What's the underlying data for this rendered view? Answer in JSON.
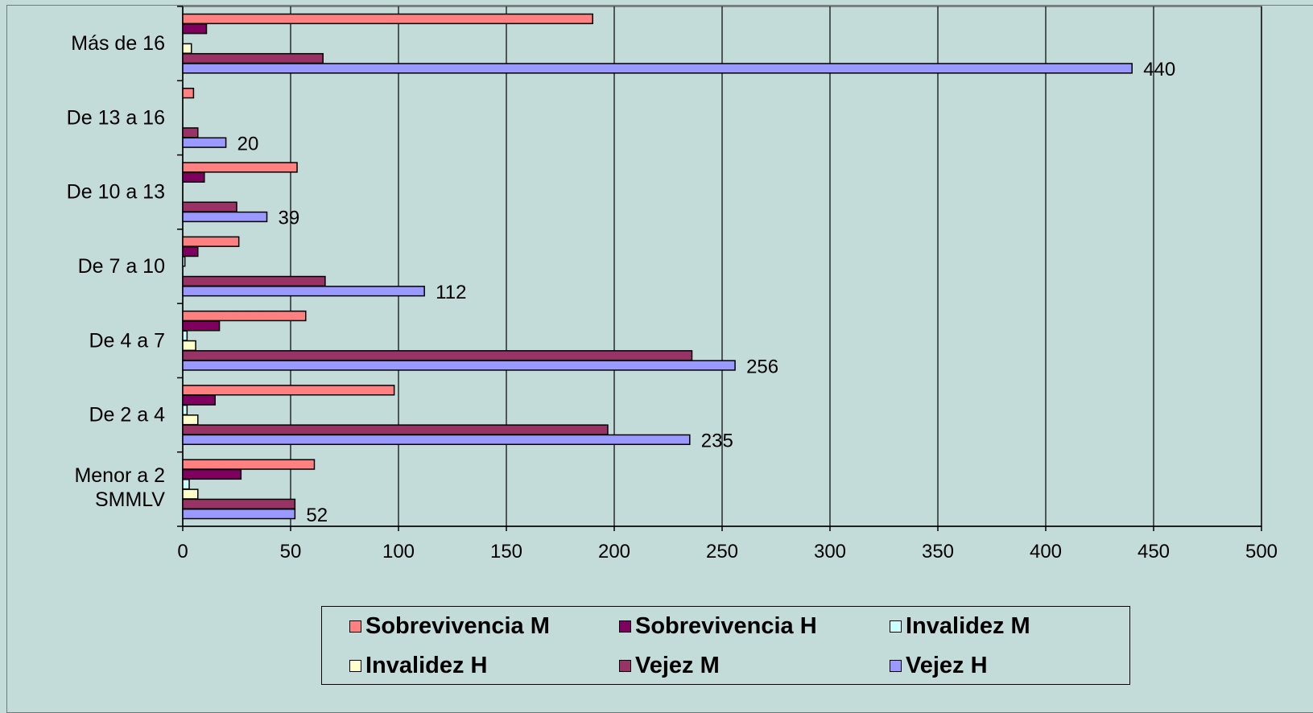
{
  "chart_data": {
    "type": "bar",
    "orientation": "horizontal",
    "categories": [
      "Menor a 2 SMMLV",
      "De 2 a 4",
      "De 4 a 7",
      "De 7 a 10",
      "De 10 a 13",
      "De 13 a 16",
      "Más de 16"
    ],
    "category_lines": [
      [
        "Menor a 2",
        "SMMLV"
      ],
      [
        "De 2 a 4"
      ],
      [
        "De 4 a 7"
      ],
      [
        "De 7 a 10"
      ],
      [
        "De 10 a 13"
      ],
      [
        "De 13 a 16"
      ],
      [
        "Más de 16"
      ]
    ],
    "series": [
      {
        "name": "Sobrevivencia M",
        "color": "#ff8080",
        "values": [
          61,
          98,
          57,
          26,
          53,
          5,
          190
        ]
      },
      {
        "name": "Sobrevivencia H",
        "color": "#800060",
        "values": [
          27,
          15,
          17,
          7,
          10,
          0,
          11
        ]
      },
      {
        "name": "Invalidez M",
        "color": "#ccffff",
        "values": [
          3,
          2,
          2,
          1,
          0,
          0,
          0
        ]
      },
      {
        "name": "Invalidez H",
        "color": "#ffffcc",
        "values": [
          7,
          7,
          6,
          0,
          0,
          0,
          4
        ]
      },
      {
        "name": "Vejez M",
        "color": "#993366",
        "values": [
          52,
          197,
          236,
          66,
          25,
          7,
          65
        ]
      },
      {
        "name": "Vejez H",
        "color": "#9999ff",
        "values": [
          52,
          235,
          256,
          112,
          39,
          20,
          440
        ]
      }
    ],
    "data_labels": {
      "series": "Vejez H",
      "values": [
        "52",
        "235",
        "256",
        "112",
        "39",
        "20",
        "440"
      ]
    },
    "xlim": [
      0,
      500
    ],
    "xticks": [
      "0",
      "50",
      "100",
      "150",
      "200",
      "250",
      "300",
      "350",
      "400",
      "450",
      "500"
    ],
    "grid": "vertical",
    "legend_position": "bottom",
    "legend": [
      "Sobrevivencia M",
      "Sobrevivencia H",
      "Invalidez M",
      "Invalidez H",
      "Vejez M",
      "Vejez H"
    ],
    "plot_background": "#c3dbd9"
  }
}
